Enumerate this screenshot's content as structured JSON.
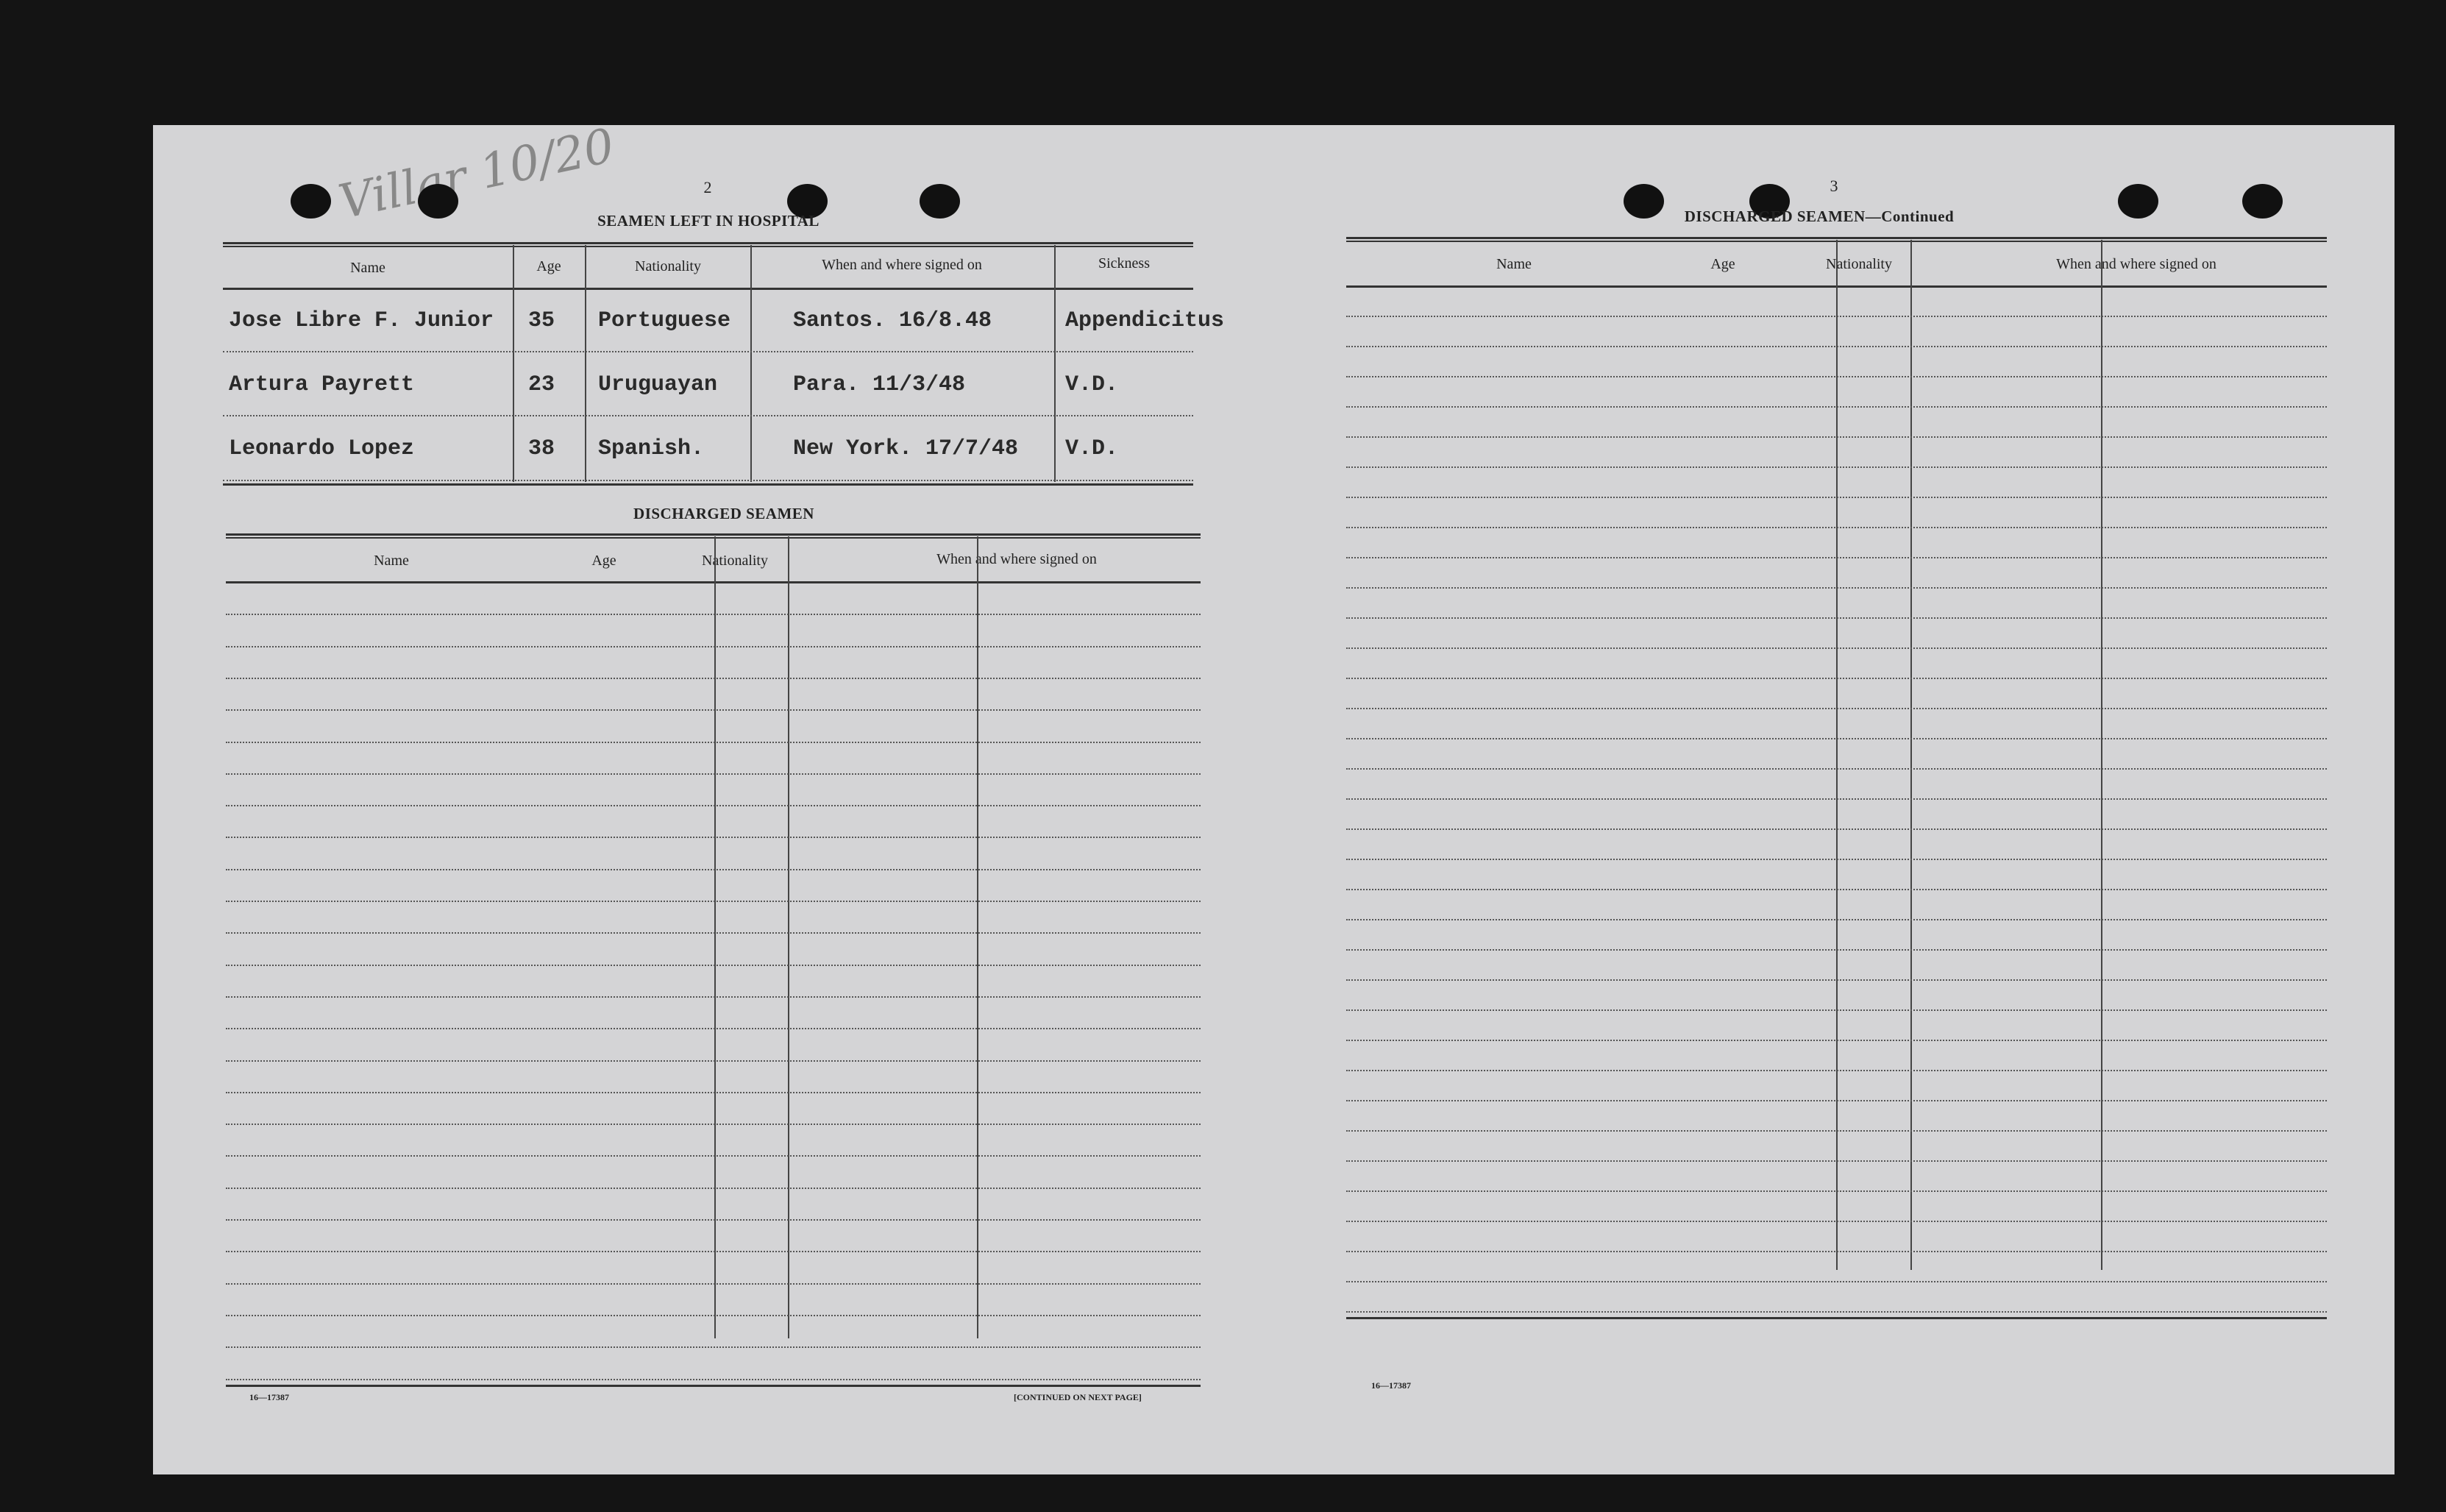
{
  "annotation": "Villar 10/20",
  "left_page": {
    "page_number": "2",
    "hospital": {
      "title": "SEAMEN LEFT IN HOSPITAL",
      "columns": [
        "Name",
        "Age",
        "Nationality",
        "When and where signed on",
        "Sickness"
      ],
      "rows": [
        [
          "Jose Libre F. Junior",
          "35",
          "Portuguese",
          "Santos. 16/8.48",
          "Appendicitus"
        ],
        [
          "Artura Payrett",
          "23",
          "Uruguayan",
          "Para.  11/3/48",
          "V.D."
        ],
        [
          "Leonardo Lopez",
          "38",
          "Spanish.",
          "New York. 17/7/48",
          "V.D."
        ]
      ]
    },
    "discharged": {
      "title": "DISCHARGED SEAMEN",
      "columns": [
        "Name",
        "Age",
        "Nationality",
        "When and where signed on"
      ]
    },
    "form_number": "16—17387",
    "continued": "[CONTINUED ON NEXT PAGE]"
  },
  "right_page": {
    "page_number": "3",
    "discharged": {
      "title": "DISCHARGED SEAMEN—Continued",
      "columns": [
        "Name",
        "Age",
        "Nationality",
        "When and where signed on"
      ]
    },
    "form_number": "16—17387"
  }
}
